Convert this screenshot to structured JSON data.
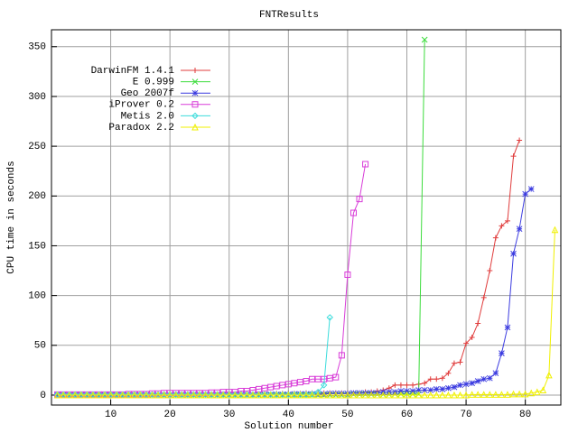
{
  "chart_data": {
    "type": "line",
    "title": "FNTResults",
    "x_label": "Solution number",
    "y_label": "CPU time in seconds",
    "xlim": [
      0,
      86
    ],
    "ylim": [
      -10,
      367
    ],
    "xticks": [
      10,
      20,
      30,
      40,
      50,
      60,
      70,
      80
    ],
    "yticks": [
      0,
      50,
      100,
      150,
      200,
      250,
      300,
      350
    ],
    "grid": true,
    "legend": "top-left",
    "x": [
      1,
      2,
      3,
      4,
      5,
      6,
      7,
      8,
      9,
      10,
      11,
      12,
      13,
      14,
      15,
      16,
      17,
      18,
      19,
      20,
      21,
      22,
      23,
      24,
      25,
      26,
      27,
      28,
      29,
      30,
      31,
      32,
      33,
      34,
      35,
      36,
      37,
      38,
      39,
      40,
      41,
      42,
      43,
      44,
      45,
      46,
      47,
      48,
      49,
      50,
      51,
      52,
      53,
      54,
      55,
      56,
      57,
      58,
      59,
      60,
      61,
      62,
      63,
      64,
      65,
      66,
      67,
      68,
      69,
      70,
      71,
      72,
      73,
      74,
      75,
      76,
      77,
      78,
      79,
      80,
      81,
      82,
      83,
      84,
      85
    ],
    "series": [
      {
        "name": "DarwinFM 1.4.1",
        "color": "#e03c3c",
        "marker": "plus",
        "values": [
          0,
          0,
          0,
          0,
          0,
          0,
          0,
          0,
          0,
          0,
          0,
          0,
          0,
          0,
          0.5,
          0.5,
          0.5,
          0.5,
          1,
          1,
          1,
          1,
          1,
          1,
          1,
          1,
          1,
          1,
          1,
          1,
          1,
          1,
          1,
          1,
          1,
          1,
          1,
          1.5,
          1.5,
          1.5,
          1.5,
          1.5,
          2,
          2,
          2,
          2,
          2,
          2,
          2,
          2,
          2,
          2,
          3,
          3,
          4,
          5,
          7,
          10,
          10,
          10,
          10,
          11,
          12,
          16,
          16,
          17,
          22,
          32,
          33,
          52,
          58,
          72,
          98,
          125,
          158,
          170,
          175,
          240,
          256,
          null,
          null,
          null,
          null,
          null,
          null
        ]
      },
      {
        "name": "E 0.999",
        "color": "#3cdc3c",
        "marker": "cross",
        "values": [
          0,
          0,
          0,
          0,
          0,
          0,
          0,
          0,
          0,
          0,
          0,
          0,
          0,
          0,
          0,
          0,
          0,
          0,
          0,
          0,
          0,
          0,
          0,
          0,
          0,
          0,
          0,
          0,
          0,
          0,
          0,
          0,
          0,
          0,
          0,
          0,
          0,
          0,
          0,
          0,
          0,
          0,
          0,
          0,
          0,
          0,
          0,
          0,
          0,
          0,
          0.5,
          0.5,
          0.5,
          0.5,
          0.5,
          0.5,
          0.5,
          1,
          1,
          1,
          1,
          1,
          357,
          null,
          null,
          null,
          null,
          null,
          null,
          null,
          null,
          null,
          null,
          null,
          null,
          null,
          null,
          null,
          null,
          null,
          null,
          null,
          null,
          null,
          null
        ]
      },
      {
        "name": "Geo 2007f",
        "color": "#3c3ce0",
        "marker": "star",
        "values": [
          0,
          0,
          0,
          0,
          0,
          0,
          0,
          0,
          0,
          0,
          0,
          0,
          0,
          0,
          0,
          0,
          0,
          0,
          0,
          0,
          0.5,
          0.5,
          0.5,
          0.5,
          0.5,
          0.5,
          0.5,
          0.5,
          0.5,
          0.5,
          0.5,
          0.5,
          0.5,
          0.5,
          0.5,
          0.5,
          0.5,
          0.5,
          0.5,
          0.5,
          1,
          1,
          1,
          1,
          1,
          1,
          1.5,
          1.5,
          1.5,
          1.5,
          2,
          2,
          2,
          2,
          2,
          3,
          3,
          3,
          4,
          4,
          4,
          5,
          5,
          5,
          6,
          6,
          7,
          8,
          10,
          11,
          12,
          14,
          16,
          17,
          22,
          42,
          68,
          142,
          167,
          202,
          207,
          null,
          null,
          null,
          null
        ]
      },
      {
        "name": "iProver 0.2",
        "color": "#d83cd8",
        "marker": "square",
        "values": [
          0.5,
          0.5,
          0.5,
          0.5,
          0.5,
          0.5,
          0.5,
          0.5,
          0.5,
          0.5,
          0.5,
          0.5,
          1,
          1,
          1,
          1,
          1.5,
          1.5,
          2,
          2,
          2,
          2,
          2,
          2,
          2,
          2,
          2.5,
          2.5,
          3,
          3,
          3,
          4,
          4,
          5,
          6,
          7,
          8,
          9,
          10,
          11,
          12,
          13,
          14,
          16,
          16,
          16,
          17,
          18,
          40,
          121,
          183,
          197,
          232,
          null,
          null,
          null,
          null,
          null,
          null,
          null,
          null,
          null,
          null,
          null,
          null,
          null,
          null,
          null,
          null,
          null,
          null,
          null,
          null,
          null,
          null,
          null,
          null,
          null,
          null,
          null,
          null,
          null,
          null,
          null,
          null
        ]
      },
      {
        "name": "Metis 2.0",
        "color": "#3cdcdc",
        "marker": "diamond",
        "values": [
          0.5,
          0.5,
          0.5,
          0.5,
          0.5,
          0.5,
          0.5,
          0.5,
          0.5,
          0.5,
          0.5,
          0.5,
          0.5,
          0.5,
          0.5,
          0.5,
          0.5,
          0.5,
          0.5,
          0.5,
          0.5,
          0.5,
          0.5,
          0.5,
          0.5,
          0.5,
          0.5,
          0.5,
          0.5,
          0.5,
          0.5,
          0.5,
          0.5,
          0.5,
          0.5,
          0.5,
          0.5,
          0.5,
          0.5,
          0.5,
          0.5,
          0.5,
          0.5,
          1,
          3,
          10,
          78,
          null,
          null,
          null,
          null,
          null,
          null,
          null,
          null,
          null,
          null,
          null,
          null,
          null,
          null,
          null,
          null,
          null,
          null,
          null,
          null,
          null,
          null,
          null,
          null,
          null,
          null,
          null,
          null,
          null,
          null,
          null,
          null,
          null,
          null,
          null,
          null,
          null,
          null
        ]
      },
      {
        "name": "Paradox 2.2",
        "color": "#f0f000",
        "marker": "triangle",
        "values": [
          0,
          0,
          0,
          0,
          0,
          0,
          0,
          0,
          0,
          0,
          0,
          0,
          0,
          0,
          0,
          0,
          0,
          0,
          0,
          0,
          0,
          0,
          0,
          0,
          0,
          0,
          0,
          0,
          0,
          0,
          0,
          0,
          0,
          0,
          0,
          0,
          0,
          0,
          0,
          0,
          0,
          0,
          0,
          0,
          0,
          0,
          0,
          0,
          0,
          0,
          0,
          0,
          0,
          0,
          0,
          0,
          0,
          0,
          0,
          0,
          0,
          0,
          0,
          0,
          0,
          0,
          0,
          0,
          0,
          0,
          0.5,
          0.5,
          0.5,
          0.5,
          0.5,
          0.5,
          0.5,
          1,
          1,
          1,
          2,
          3,
          5,
          20,
          166
        ]
      }
    ]
  }
}
